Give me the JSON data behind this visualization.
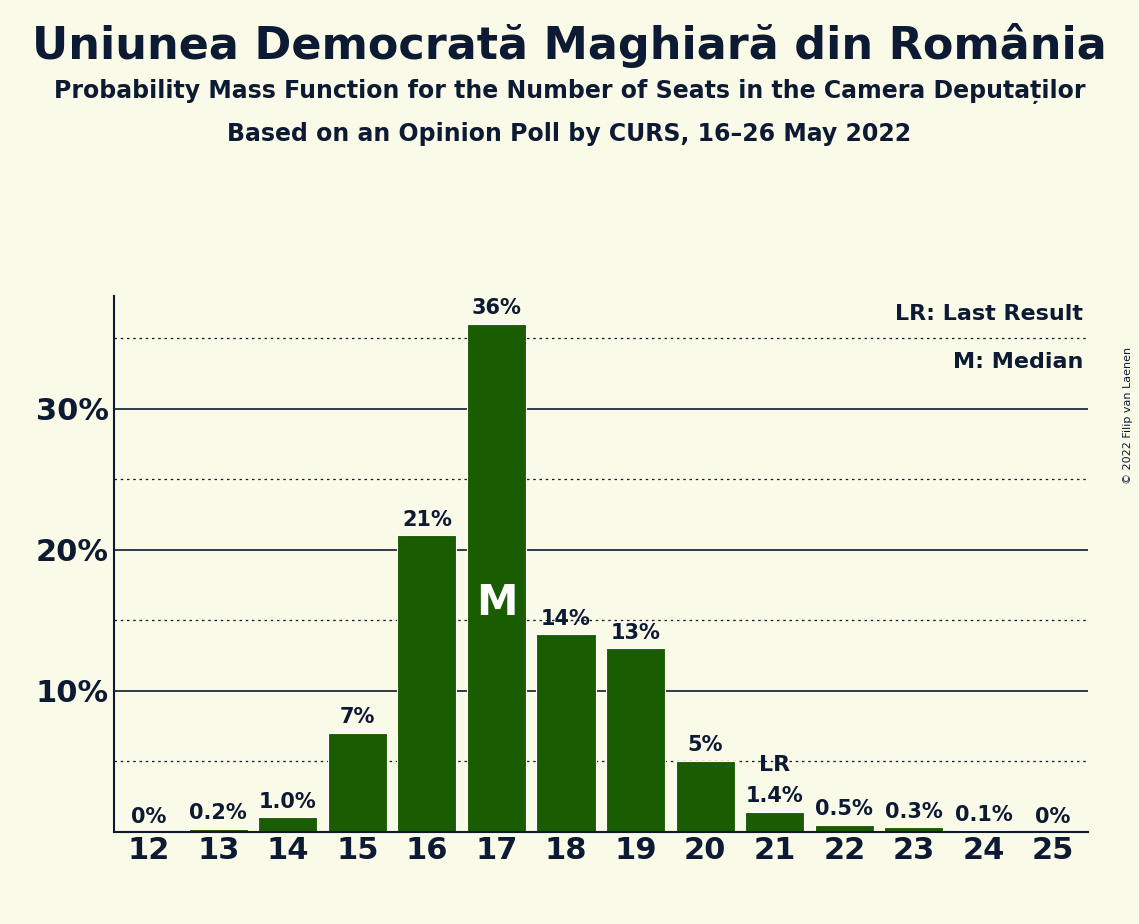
{
  "title": "Uniunea Democrată Maghiară din România",
  "subtitle1": "Probability Mass Function for the Number of Seats in the Camera Deputaților",
  "subtitle2": "Based on an Opinion Poll by CURS, 16–26 May 2022",
  "copyright": "© 2022 Filip van Laenen",
  "categories": [
    12,
    13,
    14,
    15,
    16,
    17,
    18,
    19,
    20,
    21,
    22,
    23,
    24,
    25
  ],
  "values": [
    0.0,
    0.2,
    1.0,
    7.0,
    21.0,
    36.0,
    14.0,
    13.0,
    5.0,
    1.4,
    0.5,
    0.3,
    0.1,
    0.0
  ],
  "labels": [
    "0%",
    "0.2%",
    "1.0%",
    "7%",
    "21%",
    "36%",
    "14%",
    "13%",
    "5%",
    "1.4%",
    "0.5%",
    "0.3%",
    "0.1%",
    "0%"
  ],
  "bar_color": "#1a5c00",
  "background_color": "#fafae8",
  "text_color": "#0d1a33",
  "median_seat": 17,
  "last_result_seat": 21,
  "median_label": "M",
  "last_result_label": "LR",
  "legend_lr": "LR: Last Result",
  "legend_m": "M: Median",
  "ylim": [
    0,
    38
  ],
  "yticks": [
    10,
    20,
    30
  ],
  "dotted_lines": [
    5,
    15,
    25,
    35
  ],
  "solid_lines": [
    10,
    20,
    30
  ],
  "title_fontsize": 32,
  "subtitle_fontsize": 17,
  "axis_fontsize": 22,
  "bar_label_fontsize": 15,
  "legend_fontsize": 16,
  "median_fontsize": 30,
  "lr_label_fontsize": 16
}
